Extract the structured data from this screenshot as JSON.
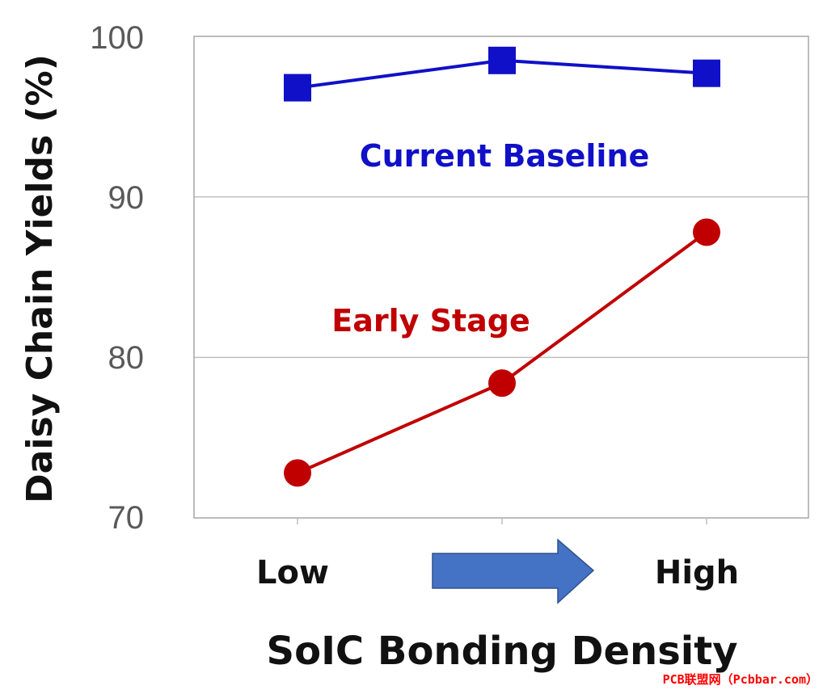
{
  "chart_data": {
    "type": "line",
    "categories": [
      "Low",
      "",
      "High"
    ],
    "ylabel": "Daisy Chain Yields (%)",
    "xlabel": "SoIC Bonding Density",
    "ylim": [
      70,
      100
    ],
    "yticks": [
      "100",
      "90",
      "80",
      "70"
    ],
    "grid": true,
    "series": [
      {
        "name": "Current Baseline",
        "values": [
          96.8,
          98.5,
          97.7
        ],
        "color": "#1010c8",
        "marker": "square"
      },
      {
        "name": "Early Stage",
        "values": [
          72.8,
          78.4,
          87.8
        ],
        "color": "#c00000",
        "marker": "circle"
      }
    ],
    "arrow_color": "#4472c4"
  },
  "watermark": "PCB联盟网（Pcbbar.com）",
  "watermark_color": "#ff0000"
}
